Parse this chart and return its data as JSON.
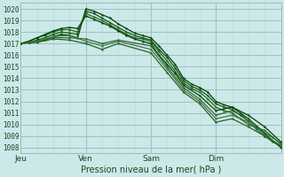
{
  "xlabel": "Pression niveau de la mer( hPa )",
  "ylim": [
    1007.5,
    1020.5
  ],
  "xlim": [
    0,
    96
  ],
  "day_ticks": [
    0,
    24,
    48,
    72
  ],
  "day_labels": [
    "Jeu",
    "Ven",
    "Sam",
    "Dim"
  ],
  "yticks": [
    1008,
    1009,
    1010,
    1011,
    1012,
    1013,
    1014,
    1015,
    1016,
    1017,
    1018,
    1019,
    1020
  ],
  "bg_color": "#cce8e8",
  "grid_minor_color": "#bbdddd",
  "grid_major_color": "#99bbbb",
  "series_colors": [
    "#004400",
    "#115511",
    "#226622",
    "#004400",
    "#336633",
    "#447744",
    "#226622"
  ],
  "series": [
    [
      0,
      1017.0,
      3,
      1017.1,
      6,
      1017.2,
      9,
      1017.3,
      12,
      1017.6,
      15,
      1017.8,
      18,
      1017.7,
      21,
      1017.5,
      24,
      1020.0,
      27,
      1019.8,
      30,
      1019.5,
      33,
      1019.2,
      36,
      1018.7,
      39,
      1018.3,
      42,
      1017.9,
      45,
      1017.7,
      48,
      1017.5,
      51,
      1016.8,
      54,
      1016.0,
      57,
      1015.2,
      60,
      1014.0,
      63,
      1013.5,
      66,
      1013.2,
      69,
      1012.8,
      72,
      1012.0,
      75,
      1011.7,
      78,
      1011.5,
      81,
      1011.0,
      84,
      1010.5,
      87,
      1009.8,
      90,
      1009.2,
      93,
      1008.6,
      96,
      1008.0
    ],
    [
      0,
      1017.0,
      3,
      1017.1,
      6,
      1017.3,
      9,
      1017.5,
      12,
      1017.8,
      15,
      1018.0,
      18,
      1017.9,
      21,
      1017.8,
      24,
      1019.8,
      27,
      1019.6,
      30,
      1019.2,
      33,
      1018.8,
      36,
      1018.4,
      39,
      1018.0,
      42,
      1017.7,
      45,
      1017.5,
      48,
      1017.3,
      51,
      1016.5,
      54,
      1015.8,
      57,
      1014.9,
      60,
      1013.8,
      63,
      1013.3,
      66,
      1013.0,
      69,
      1012.5,
      72,
      1011.8,
      75,
      1011.5,
      78,
      1011.3,
      81,
      1010.8,
      84,
      1010.3,
      87,
      1009.6,
      90,
      1009.0,
      93,
      1008.5,
      96,
      1008.1
    ],
    [
      0,
      1017.0,
      3,
      1017.2,
      6,
      1017.5,
      9,
      1017.7,
      12,
      1018.0,
      15,
      1018.2,
      18,
      1018.2,
      21,
      1018.0,
      24,
      1019.6,
      27,
      1019.3,
      30,
      1019.0,
      33,
      1018.6,
      36,
      1018.2,
      39,
      1017.8,
      42,
      1017.5,
      45,
      1017.4,
      48,
      1017.2,
      51,
      1016.3,
      54,
      1015.5,
      57,
      1014.6,
      60,
      1013.6,
      63,
      1013.1,
      66,
      1012.8,
      69,
      1012.2,
      72,
      1011.5,
      75,
      1011.2,
      78,
      1011.0,
      81,
      1010.5,
      84,
      1010.0,
      87,
      1009.7,
      90,
      1009.5,
      93,
      1008.9,
      96,
      1008.3
    ],
    [
      0,
      1017.0,
      3,
      1017.2,
      6,
      1017.5,
      9,
      1017.8,
      12,
      1018.1,
      15,
      1018.3,
      18,
      1018.4,
      21,
      1018.3,
      24,
      1019.4,
      27,
      1019.1,
      30,
      1018.8,
      33,
      1018.5,
      36,
      1018.1,
      39,
      1017.7,
      42,
      1017.4,
      45,
      1017.2,
      48,
      1017.0,
      51,
      1016.0,
      54,
      1015.2,
      57,
      1014.4,
      60,
      1013.4,
      66,
      1012.5,
      72,
      1011.2,
      78,
      1011.5,
      84,
      1010.8,
      90,
      1009.8,
      96,
      1008.5
    ],
    [
      0,
      1017.0,
      6,
      1017.2,
      12,
      1017.5,
      18,
      1017.5,
      24,
      1017.4,
      30,
      1017.0,
      36,
      1017.3,
      48,
      1016.8,
      54,
      1015.0,
      60,
      1013.2,
      66,
      1012.2,
      72,
      1010.8,
      78,
      1011.2,
      84,
      1010.5,
      90,
      1009.3,
      96,
      1008.4
    ],
    [
      0,
      1017.0,
      6,
      1017.2,
      12,
      1017.6,
      18,
      1017.7,
      24,
      1017.2,
      30,
      1016.8,
      36,
      1017.2,
      48,
      1016.5,
      54,
      1014.8,
      60,
      1013.0,
      66,
      1012.0,
      72,
      1010.5,
      78,
      1010.8,
      84,
      1010.2,
      90,
      1009.0,
      96,
      1008.2
    ],
    [
      0,
      1017.0,
      6,
      1017.1,
      12,
      1017.4,
      18,
      1017.3,
      24,
      1017.0,
      30,
      1016.5,
      36,
      1017.0,
      48,
      1016.2,
      54,
      1014.5,
      60,
      1012.8,
      66,
      1011.8,
      72,
      1010.2,
      78,
      1010.5,
      84,
      1009.8,
      90,
      1009.0,
      96,
      1008.1
    ]
  ]
}
